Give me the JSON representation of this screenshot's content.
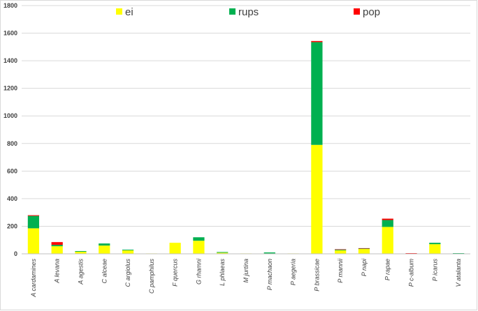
{
  "chart_data": {
    "type": "bar",
    "stacked": true,
    "categories": [
      "A cardamines",
      "A levana",
      "A agestis",
      "C alceae",
      "C argiolus",
      "C pamphilus",
      "F quercus",
      "G rhamni",
      "L phlaeas",
      "M jurtina",
      "P machaon",
      "P aegeria",
      "P brassicae",
      "P mannii",
      "P napi",
      "P rapae",
      "P c-album",
      "P icarus",
      "V atalanta"
    ],
    "series": [
      {
        "name": "ei",
        "color": "#ffff00",
        "values": [
          185,
          55,
          15,
          60,
          25,
          3,
          80,
          95,
          8,
          3,
          3,
          3,
          790,
          25,
          35,
          195,
          0,
          70,
          0
        ]
      },
      {
        "name": "rups",
        "color": "#00b050",
        "values": [
          90,
          10,
          5,
          15,
          5,
          0,
          0,
          25,
          5,
          0,
          7,
          0,
          745,
          5,
          3,
          50,
          0,
          10,
          5
        ]
      },
      {
        "name": "pop",
        "color": "#ff0000",
        "values": [
          5,
          20,
          0,
          0,
          0,
          0,
          0,
          0,
          0,
          0,
          0,
          0,
          8,
          3,
          3,
          10,
          5,
          0,
          0
        ]
      }
    ],
    "ylim": [
      0,
      1800
    ],
    "yticks": [
      "0",
      "200",
      "400",
      "600",
      "800",
      "1000",
      "1200",
      "1400",
      "1600",
      "1800"
    ],
    "grid": true,
    "legend_position": "top"
  }
}
